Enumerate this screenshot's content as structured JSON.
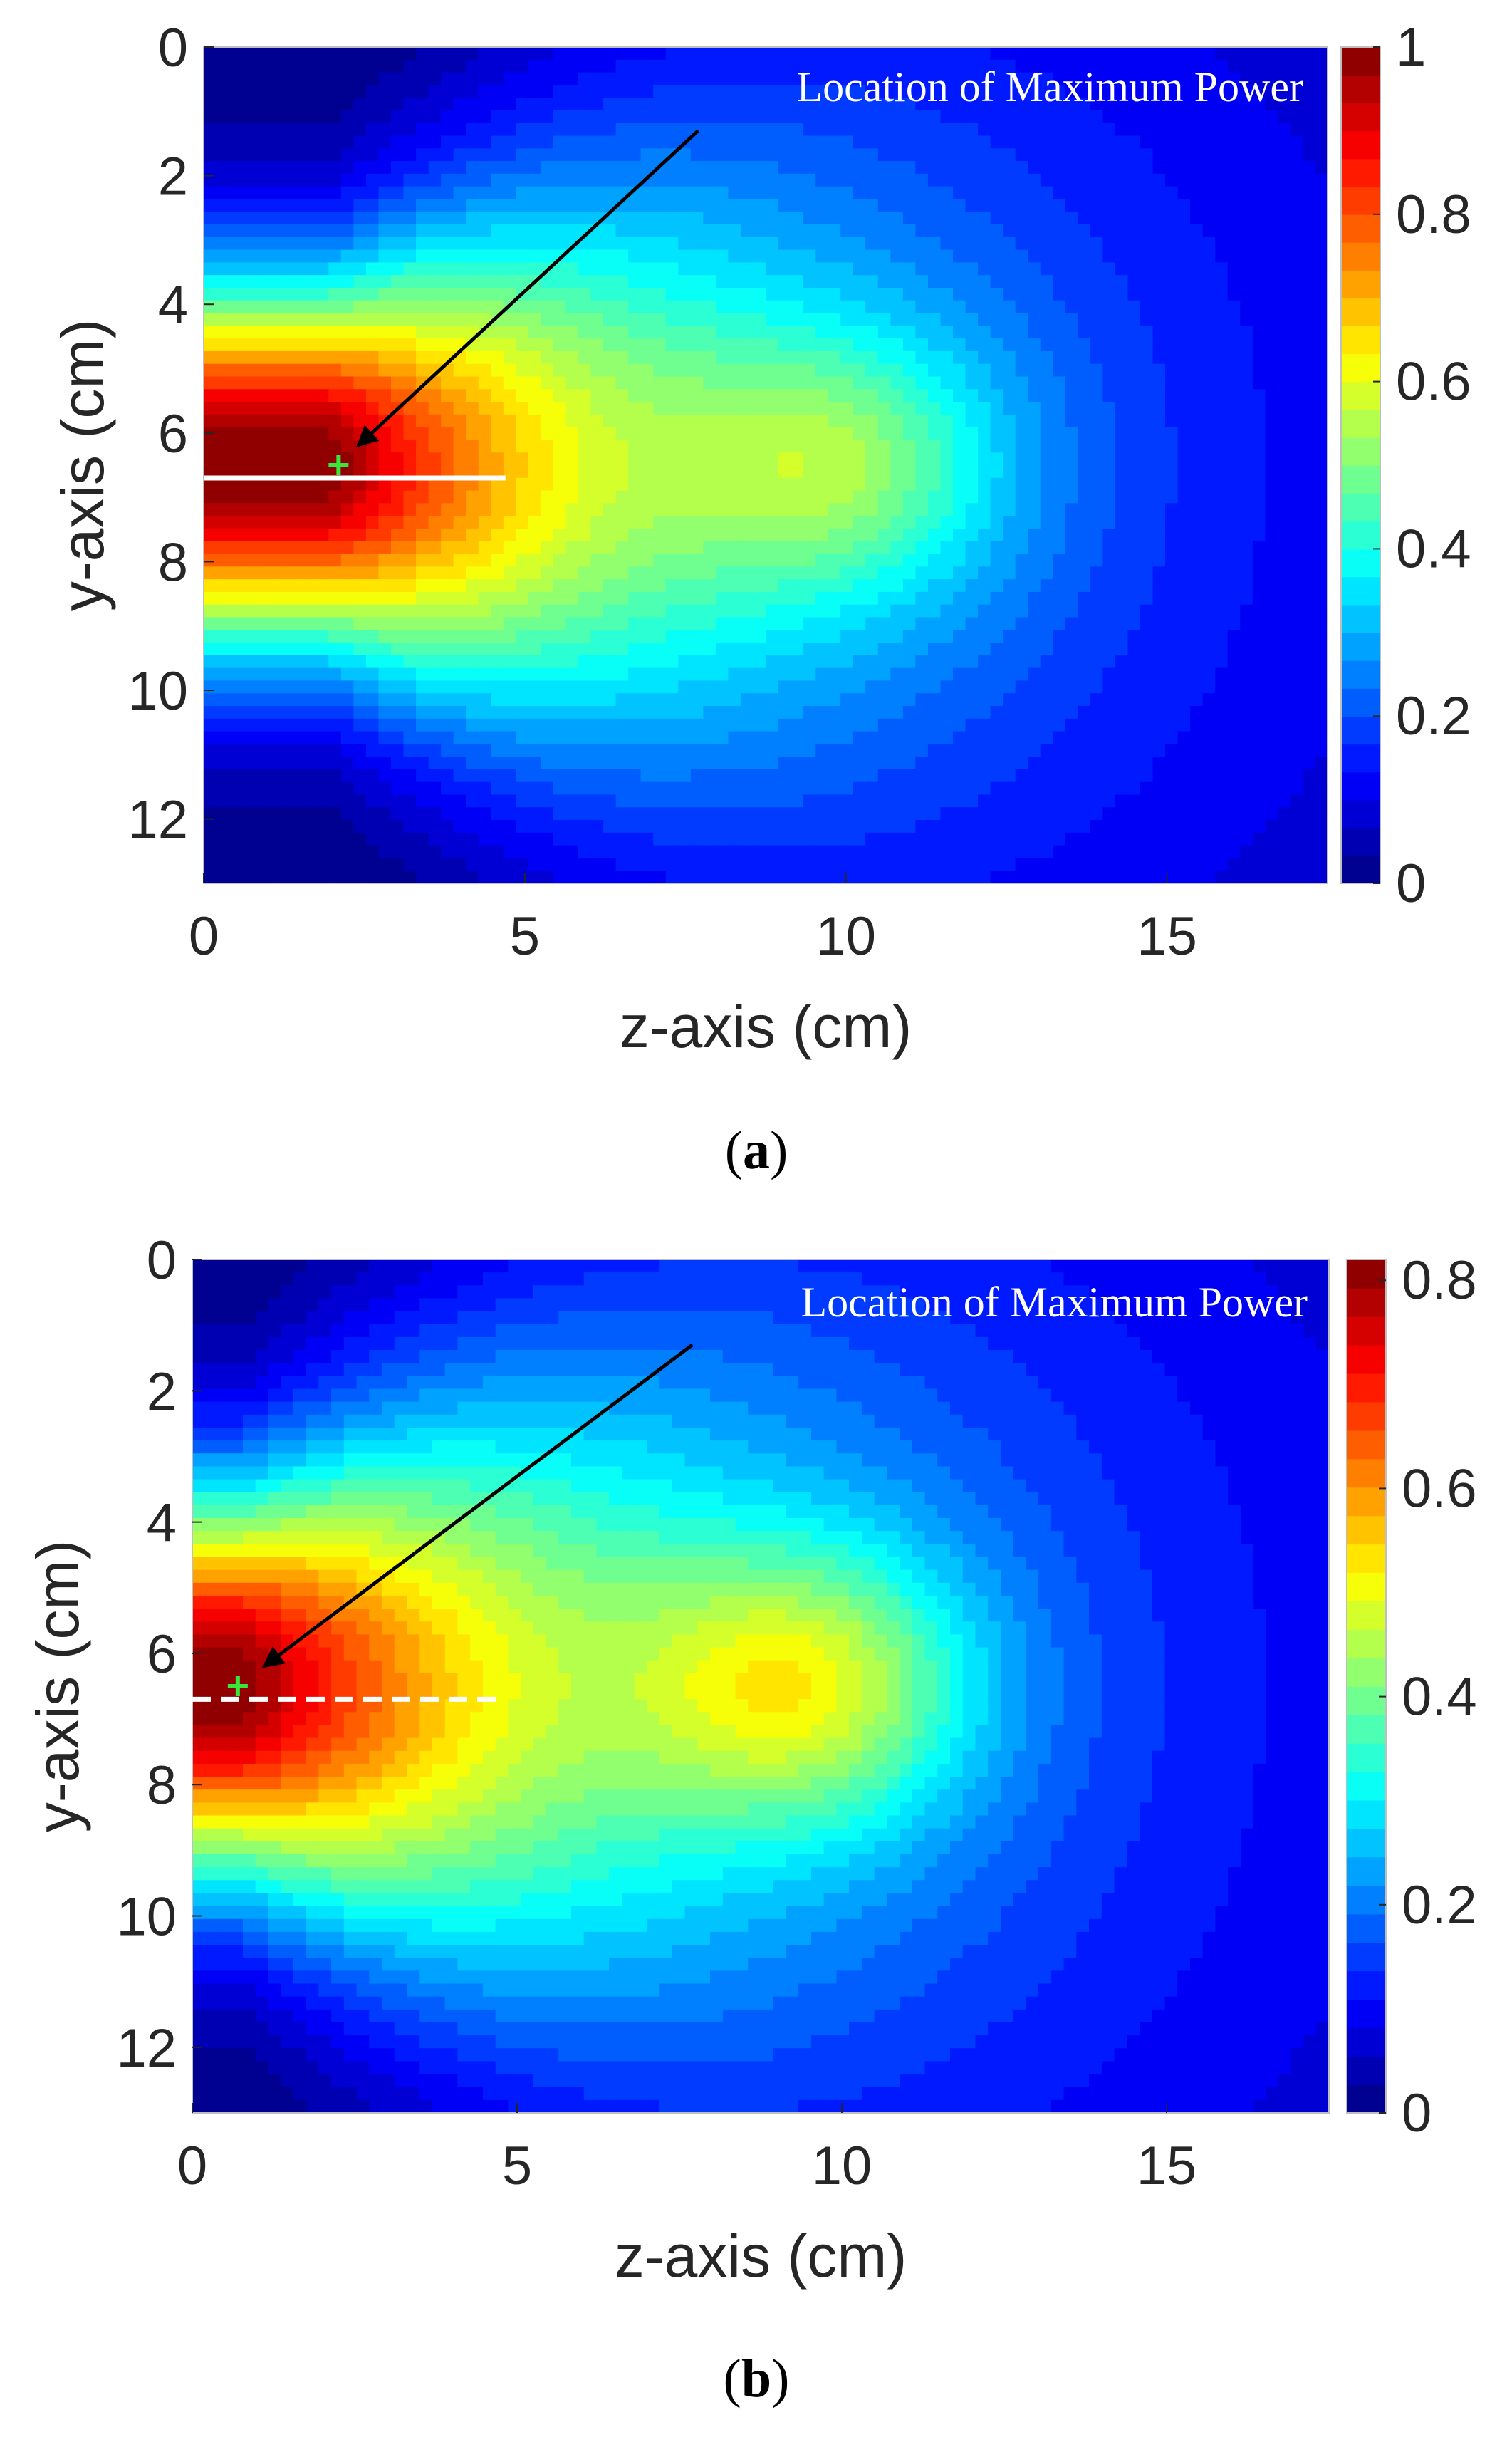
{
  "figure_title": "",
  "chart_data": [
    {
      "type": "heatmap",
      "panel_label_prefix": "(",
      "panel_label": "a",
      "panel_label_suffix": ")",
      "xlabel": "z-axis (cm)",
      "ylabel": "y-axis (cm)",
      "xlim": [
        0,
        17.5
      ],
      "ylim": [
        0,
        13
      ],
      "y_reversed": true,
      "xticks": [
        0,
        5,
        10,
        15
      ],
      "yticks": [
        0,
        2,
        4,
        6,
        8,
        10,
        12
      ],
      "colorbar": {
        "min": 0,
        "max": 1,
        "ticks": [
          0,
          0.2,
          0.4,
          0.6,
          0.8,
          1
        ],
        "colormap": "jet",
        "levels": 30
      },
      "field": {
        "peak_value": 1.0,
        "core_y": 6.5,
        "core_end_z": 2.0,
        "spread_y_cm": 2.9,
        "decay_z_cm": 7.2,
        "lobe_strength": 0.22,
        "lobe_z": 10.0
      },
      "annotation": "Location of Maximum Power",
      "annotation_arrow": {
        "from": [
          7.7,
          1.3
        ],
        "to": [
          2.4,
          6.2
        ]
      },
      "max_marker": {
        "z": 2.1,
        "y": 6.5,
        "color": "#39e639"
      },
      "guide_line": {
        "y": 6.7,
        "z_start": 0,
        "z_end": 4.7,
        "style": "solid",
        "color": "#ffffff"
      }
    },
    {
      "type": "heatmap",
      "panel_label_prefix": "(",
      "panel_label": "b",
      "panel_label_suffix": ")",
      "xlabel": "z-axis (cm)",
      "ylabel": "y-axis (cm)",
      "xlim": [
        0,
        17.5
      ],
      "ylim": [
        0,
        13
      ],
      "y_reversed": true,
      "xticks": [
        0,
        5,
        10,
        15
      ],
      "yticks": [
        0,
        2,
        4,
        6,
        8,
        10,
        12
      ],
      "colorbar": {
        "min": 0,
        "max": 0.82,
        "ticks": [
          0,
          0.2,
          0.4,
          0.6,
          0.8
        ],
        "colormap": "jet",
        "levels": 30
      },
      "field": {
        "peak_value": 0.82,
        "core_y": 6.5,
        "core_end_z": 0.8,
        "spread_y_cm": 3.0,
        "decay_z_cm": 7.8,
        "lobe_strength": 0.25,
        "lobe_z": 9.5
      },
      "annotation": "Location of Maximum Power",
      "annotation_arrow": {
        "from": [
          7.7,
          1.3
        ],
        "to": [
          1.1,
          6.2
        ]
      },
      "max_marker": {
        "z": 0.7,
        "y": 6.5,
        "color": "#39e639"
      },
      "guide_line": {
        "y": 6.7,
        "z_start": 0,
        "z_end": 4.7,
        "style": "dashed",
        "color": "#ffffff"
      }
    }
  ]
}
